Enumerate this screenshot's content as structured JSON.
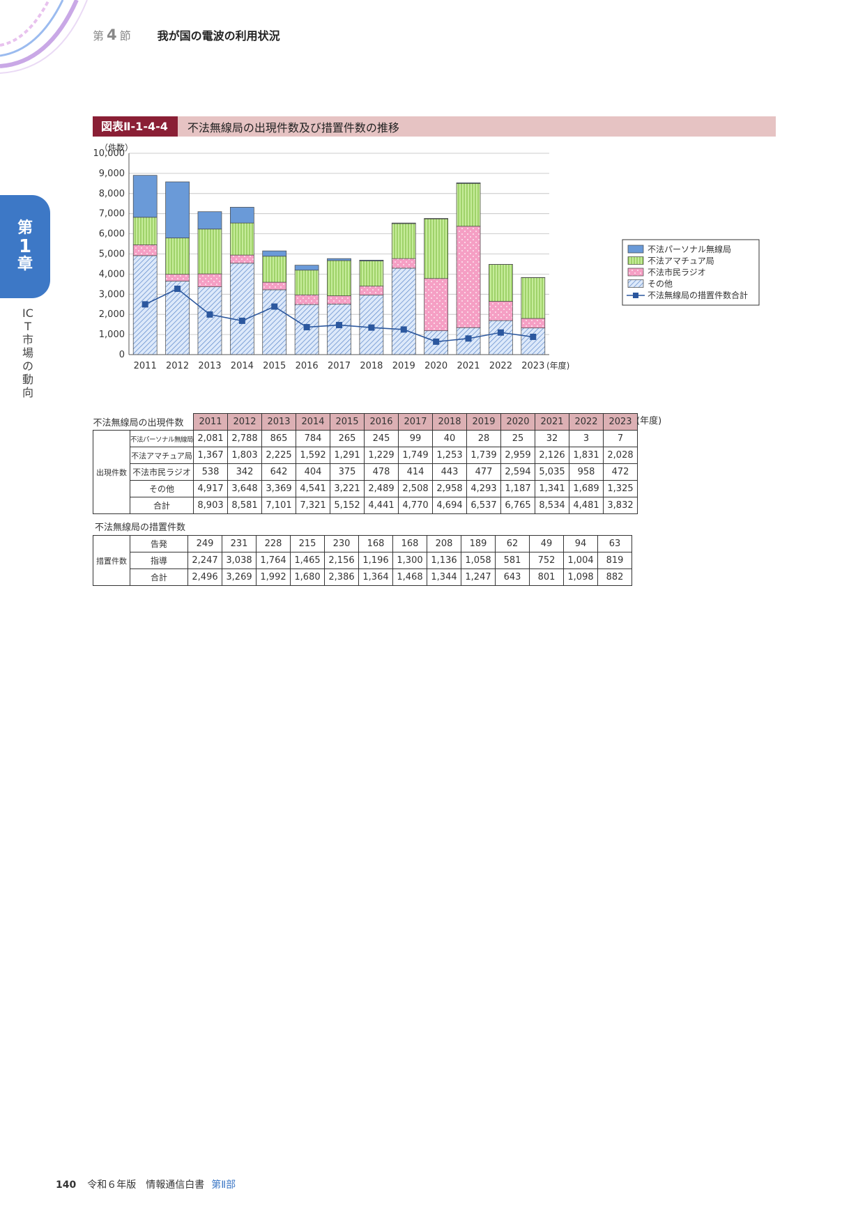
{
  "header": {
    "section_prefix": "第",
    "section_number": "4",
    "section_suffix": "節",
    "title": "我が国の電波の利用状況"
  },
  "chapter_tab": {
    "prefix": "第",
    "number": "1",
    "suffix": "章"
  },
  "side_title": "ICT市場の動向",
  "figure": {
    "label": "図表Ⅱ-1-4-4",
    "title": "不法無線局の出現件数及び措置件数の推移"
  },
  "chart_data": {
    "type": "bar",
    "stacked": true,
    "y_unit_label": "（件数）",
    "x_unit_label": "(年度)",
    "ylim": [
      0,
      10000
    ],
    "y_ticks": [
      "0",
      "1,000",
      "2,000",
      "3,000",
      "4,000",
      "5,000",
      "6,000",
      "7,000",
      "8,000",
      "9,000",
      "10,000"
    ],
    "categories": [
      "2011",
      "2012",
      "2013",
      "2014",
      "2015",
      "2016",
      "2017",
      "2018",
      "2019",
      "2020",
      "2021",
      "2022",
      "2023"
    ],
    "series": [
      {
        "name": "その他",
        "color": "#aecbf0",
        "values": [
          4917,
          3648,
          3369,
          4541,
          3221,
          2489,
          2508,
          2958,
          4293,
          1187,
          1341,
          1689,
          1325
        ]
      },
      {
        "name": "不法市民ラジオ",
        "color": "#f7a8c9",
        "values": [
          538,
          342,
          642,
          404,
          375,
          478,
          414,
          443,
          477,
          2594,
          5035,
          958,
          472
        ]
      },
      {
        "name": "不法アマチュア局",
        "color": "#b6e486",
        "values": [
          1367,
          1803,
          2225,
          1592,
          1291,
          1229,
          1749,
          1253,
          1739,
          2959,
          2126,
          1831,
          2028
        ]
      },
      {
        "name": "不法パーソナル無線局",
        "color": "#6a9ad8",
        "values": [
          2081,
          2788,
          865,
          784,
          265,
          245,
          99,
          40,
          28,
          25,
          32,
          3,
          7
        ]
      }
    ],
    "line_series": {
      "name": "不法無線局の措置件数合計",
      "color": "#2b579e",
      "values": [
        2496,
        3269,
        1992,
        1680,
        2386,
        1364,
        1468,
        1344,
        1247,
        643,
        801,
        1098,
        882
      ]
    },
    "legend": [
      "不法パーソナル無線局",
      "不法アマチュア局",
      "不法市民ラジオ",
      "その他",
      "不法無線局の措置件数合計"
    ],
    "legend_position": "right"
  },
  "table_appear": {
    "caption": "不法無線局の出現件数",
    "unit_note": "(年度)",
    "years": [
      "2011",
      "2012",
      "2013",
      "2014",
      "2015",
      "2016",
      "2017",
      "2018",
      "2019",
      "2020",
      "2021",
      "2022",
      "2023"
    ],
    "group_label": "出現件数",
    "rows": [
      {
        "label": "不法パーソナル無線局",
        "values": [
          "2,081",
          "2,788",
          "865",
          "784",
          "265",
          "245",
          "99",
          "40",
          "28",
          "25",
          "32",
          "3",
          "7"
        ]
      },
      {
        "label": "不法アマチュア局",
        "values": [
          "1,367",
          "1,803",
          "2,225",
          "1,592",
          "1,291",
          "1,229",
          "1,749",
          "1,253",
          "1,739",
          "2,959",
          "2,126",
          "1,831",
          "2,028"
        ]
      },
      {
        "label": "不法市民ラジオ",
        "values": [
          "538",
          "342",
          "642",
          "404",
          "375",
          "478",
          "414",
          "443",
          "477",
          "2,594",
          "5,035",
          "958",
          "472"
        ]
      },
      {
        "label": "その他",
        "values": [
          "4,917",
          "3,648",
          "3,369",
          "4,541",
          "3,221",
          "2,489",
          "2,508",
          "2,958",
          "4,293",
          "1,187",
          "1,341",
          "1,689",
          "1,325"
        ]
      },
      {
        "label": "合計",
        "values": [
          "8,903",
          "8,581",
          "7,101",
          "7,321",
          "5,152",
          "4,441",
          "4,770",
          "4,694",
          "6,537",
          "6,765",
          "8,534",
          "4,481",
          "3,832"
        ]
      }
    ]
  },
  "table_measure": {
    "caption": "不法無線局の措置件数",
    "group_label": "措置件数",
    "rows": [
      {
        "label": "告発",
        "values": [
          "249",
          "231",
          "228",
          "215",
          "230",
          "168",
          "168",
          "208",
          "189",
          "62",
          "49",
          "94",
          "63"
        ]
      },
      {
        "label": "指導",
        "values": [
          "2,247",
          "3,038",
          "1,764",
          "1,465",
          "2,156",
          "1,196",
          "1,300",
          "1,136",
          "1,058",
          "581",
          "752",
          "1,004",
          "819"
        ]
      },
      {
        "label": "合計",
        "values": [
          "2,496",
          "3,269",
          "1,992",
          "1,680",
          "2,386",
          "1,364",
          "1,468",
          "1,344",
          "1,247",
          "643",
          "801",
          "1,098",
          "882"
        ]
      }
    ]
  },
  "footer": {
    "page": "140",
    "publication": "令和６年版　情報通信白書",
    "part": "第Ⅱ部"
  }
}
